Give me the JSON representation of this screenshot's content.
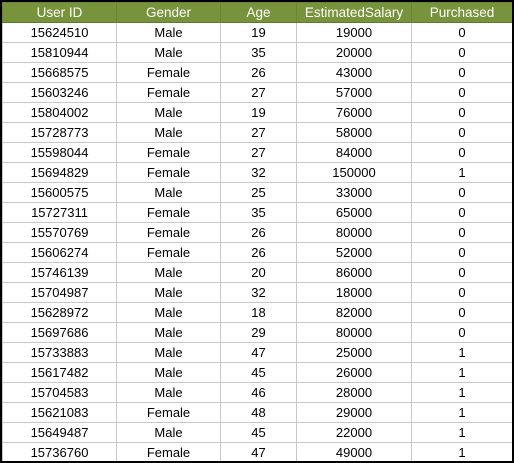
{
  "table": {
    "headers": [
      "User ID",
      "Gender",
      "Age",
      "EstimatedSalary",
      "Purchased"
    ],
    "rows": [
      [
        "15624510",
        "Male",
        "19",
        "19000",
        "0"
      ],
      [
        "15810944",
        "Male",
        "35",
        "20000",
        "0"
      ],
      [
        "15668575",
        "Female",
        "26",
        "43000",
        "0"
      ],
      [
        "15603246",
        "Female",
        "27",
        "57000",
        "0"
      ],
      [
        "15804002",
        "Male",
        "19",
        "76000",
        "0"
      ],
      [
        "15728773",
        "Male",
        "27",
        "58000",
        "0"
      ],
      [
        "15598044",
        "Female",
        "27",
        "84000",
        "0"
      ],
      [
        "15694829",
        "Female",
        "32",
        "150000",
        "1"
      ],
      [
        "15600575",
        "Male",
        "25",
        "33000",
        "0"
      ],
      [
        "15727311",
        "Female",
        "35",
        "65000",
        "0"
      ],
      [
        "15570769",
        "Female",
        "26",
        "80000",
        "0"
      ],
      [
        "15606274",
        "Female",
        "26",
        "52000",
        "0"
      ],
      [
        "15746139",
        "Male",
        "20",
        "86000",
        "0"
      ],
      [
        "15704987",
        "Male",
        "32",
        "18000",
        "0"
      ],
      [
        "15628972",
        "Male",
        "18",
        "82000",
        "0"
      ],
      [
        "15697686",
        "Male",
        "29",
        "80000",
        "0"
      ],
      [
        "15733883",
        "Male",
        "47",
        "25000",
        "1"
      ],
      [
        "15617482",
        "Male",
        "45",
        "26000",
        "1"
      ],
      [
        "15704583",
        "Male",
        "46",
        "28000",
        "1"
      ],
      [
        "15621083",
        "Female",
        "48",
        "29000",
        "1"
      ],
      [
        "15649487",
        "Male",
        "45",
        "22000",
        "1"
      ],
      [
        "15736760",
        "Female",
        "47",
        "49000",
        "1"
      ]
    ]
  },
  "colors": {
    "header_background": "#77933c",
    "header_text": "#ffffff",
    "grid_line": "#c8c8c8",
    "frame_border": "#000000"
  }
}
